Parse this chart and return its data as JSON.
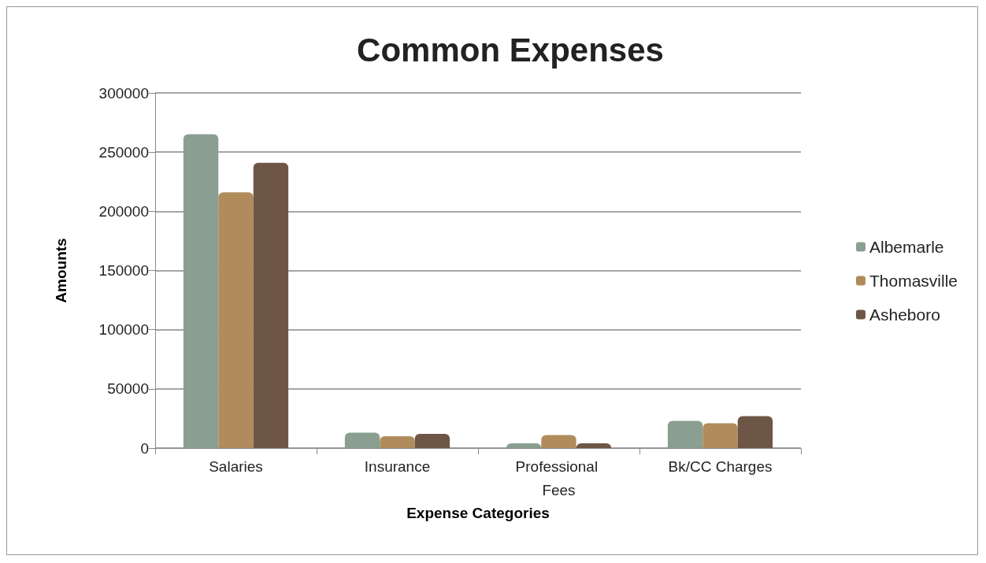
{
  "chart_data": {
    "type": "bar",
    "title": "Common Expenses",
    "xlabel": "Expense Categories",
    "ylabel": "Amounts",
    "categories": [
      "Salaries",
      "Insurance",
      "Professional Fees",
      "Bk/CC Charges"
    ],
    "series": [
      {
        "name": "Albemarle",
        "color": "#8a9f91",
        "values": [
          265000,
          13000,
          4000,
          23000
        ]
      },
      {
        "name": "Thomasville",
        "color": "#b08c5c",
        "values": [
          216000,
          10000,
          11000,
          21000
        ]
      },
      {
        "name": "Asheboro",
        "color": "#6e5647",
        "values": [
          241000,
          12000,
          4000,
          27000
        ]
      }
    ],
    "ylim": [
      0,
      300000
    ],
    "yticks": [
      0,
      50000,
      100000,
      150000,
      200000,
      250000,
      300000
    ],
    "grid": "y",
    "legend": "right"
  }
}
